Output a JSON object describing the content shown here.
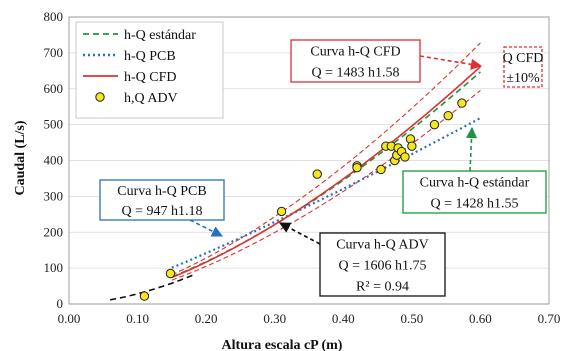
{
  "chart_data": {
    "type": "scatter",
    "xlabel": "Altura escala cP (m)",
    "ylabel": "Caudal (L/s)",
    "xlim": [
      0.0,
      0.7
    ],
    "ylim": [
      0,
      800
    ],
    "x_ticks": [
      "0.00",
      "0.10",
      "0.20",
      "0.30",
      "0.40",
      "0.50",
      "0.60",
      "0.70"
    ],
    "y_ticks": [
      "0",
      "100",
      "200",
      "300",
      "400",
      "500",
      "600",
      "700",
      "800"
    ],
    "grid": "horizontal",
    "legend": {
      "position": "top-left",
      "entries": [
        "h-Q estándar",
        "h-Q PCB",
        "h-Q CFD",
        "h,Q ADV"
      ]
    },
    "series": [
      {
        "name": "h-Q estándar",
        "kind": "line",
        "style": "dashed",
        "color": "#1a9641",
        "coef": 1428,
        "exp": 1.55,
        "x_range": [
          0.15,
          0.6
        ]
      },
      {
        "name": "h-Q PCB",
        "kind": "line",
        "style": "dotted",
        "color": "#2c6fbb",
        "coef": 947,
        "exp": 1.18,
        "x_range": [
          0.15,
          0.6
        ]
      },
      {
        "name": "h-Q CFD",
        "kind": "line",
        "style": "solid",
        "color": "#e03030",
        "coef": 1483,
        "exp": 1.58,
        "x_range": [
          0.15,
          0.6
        ],
        "band": 0.1
      },
      {
        "name": "h,Q ADV",
        "kind": "scatter",
        "color": "#f5e61e",
        "x": [
          0.11,
          0.148,
          0.31,
          0.362,
          0.42,
          0.42,
          0.455,
          0.462,
          0.47,
          0.475,
          0.478,
          0.48,
          0.485,
          0.49,
          0.498,
          0.5,
          0.533,
          0.553,
          0.573
        ],
        "y": [
          22,
          85,
          258,
          362,
          385,
          380,
          375,
          440,
          440,
          400,
          415,
          435,
          425,
          410,
          460,
          440,
          500,
          525,
          560
        ]
      },
      {
        "name": "",
        "kind": "line",
        "style": "dashed",
        "color": "#111111",
        "coef": 1606,
        "exp": 1.75,
        "x_range": [
          0.06,
          0.18
        ]
      }
    ],
    "annotations": [
      {
        "id": "cfd",
        "lines": [
          "Curva h-Q CFD",
          "Q = 1483 h1.58"
        ],
        "border": "#e03030"
      },
      {
        "id": "band",
        "lines": [
          "Q CFD",
          "±10%"
        ],
        "border": "#e03030"
      },
      {
        "id": "estandar",
        "lines": [
          "Curva h-Q estándar",
          "Q = 1428 h1.55"
        ],
        "border": "#1a9641"
      },
      {
        "id": "pcb",
        "lines": [
          "Curva h-Q PCB",
          "Q = 947 h1.18"
        ],
        "border": "#2c6fbb"
      },
      {
        "id": "adv",
        "lines": [
          "Curva h-Q ADV",
          "Q = 1606 h1.75",
          "R² = 0.94"
        ],
        "border": "#111111"
      }
    ]
  }
}
